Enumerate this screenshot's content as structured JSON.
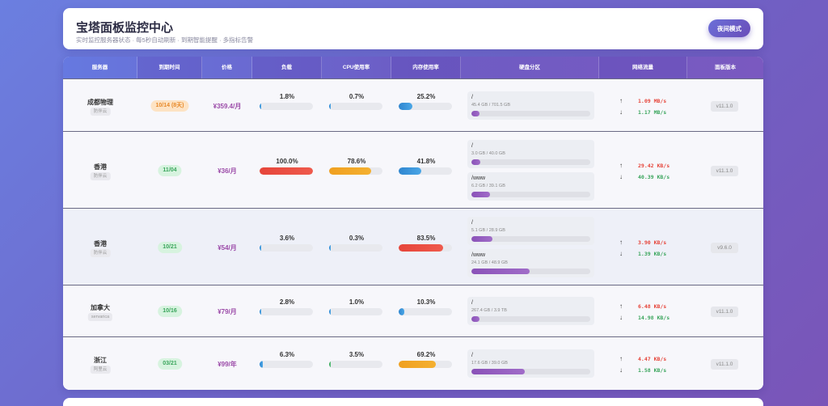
{
  "header": {
    "title": "宝塔面板监控中心",
    "subtitle": "实时监控服务器状态 · 每5秒自动刷新 · 到期智能提醒 · 多指标告警",
    "night_mode_label": "夜间模式"
  },
  "columns": [
    "服务器",
    "到期时间",
    "价格",
    "负载",
    "CPU使用率",
    "内存使用率",
    "硬盘分区",
    "网络流量",
    "面板版本"
  ],
  "net_arrows": {
    "up": "↑",
    "down": "↓"
  },
  "servers": [
    {
      "name": "成都物理",
      "provider": "防伴云",
      "expiry": "10/14 (8天)",
      "expiry_status": "warn",
      "price": "¥359.4/月",
      "load": "1.8%",
      "load_pct": 1.8,
      "cpu": "0.7%",
      "cpu_pct": 0.7,
      "mem": "25.2%",
      "mem_pct": 25.2,
      "disks": [
        {
          "mount": "/",
          "size": "45.4 GB / 701.5 GB",
          "pct": 6.5
        }
      ],
      "net_up": "1.09 MB/s",
      "net_down": "1.17 MB/s",
      "version": "v11.1.0"
    },
    {
      "name": "香港",
      "provider": "防伴云",
      "expiry": "11/04",
      "expiry_status": "ok",
      "price": "¥36/月",
      "load": "100.0%",
      "load_pct": 100,
      "cpu": "78.6%",
      "cpu_pct": 78.6,
      "mem": "41.8%",
      "mem_pct": 41.8,
      "disks": [
        {
          "mount": "/",
          "size": "3.0 GB / 40.0 GB",
          "pct": 7.5
        },
        {
          "mount": "/www",
          "size": "6.2 GB / 39.1 GB",
          "pct": 15.9
        }
      ],
      "net_up": "29.42 KB/s",
      "net_down": "40.39 KB/s",
      "version": "v11.1.0"
    },
    {
      "name": "香港",
      "provider": "防伴云",
      "expiry": "10/21",
      "expiry_status": "ok",
      "price": "¥54/月",
      "load": "3.6%",
      "load_pct": 3.6,
      "cpu": "0.3%",
      "cpu_pct": 0.3,
      "mem": "83.5%",
      "mem_pct": 83.5,
      "disks": [
        {
          "mount": "/",
          "size": "5.1 GB / 28.9 GB",
          "pct": 17.6
        },
        {
          "mount": "/www",
          "size": "24.1 GB / 48.9 GB",
          "pct": 49.3
        }
      ],
      "net_up": "3.90 KB/s",
      "net_down": "1.39 KB/s",
      "version": "v9.6.0"
    },
    {
      "name": "加拿大",
      "provider": "servarica",
      "expiry": "10/16",
      "expiry_status": "ok",
      "price": "¥79/月",
      "load": "2.8%",
      "load_pct": 2.8,
      "cpu": "1.0%",
      "cpu_pct": 1.0,
      "mem": "10.3%",
      "mem_pct": 10.3,
      "disks": [
        {
          "mount": "/",
          "size": "267.4 GB / 3.9 TB",
          "pct": 6.7
        }
      ],
      "net_up": "6.48 KB/s",
      "net_down": "14.98 KB/s",
      "version": "v11.1.0"
    },
    {
      "name": "浙江",
      "provider": "阿里云",
      "expiry": "03/21",
      "expiry_status": "ok",
      "price": "¥99/年",
      "load": "6.3%",
      "load_pct": 6.3,
      "cpu": "3.5%",
      "cpu_pct": 3.5,
      "mem": "69.2%",
      "mem_pct": 69.2,
      "disks": [
        {
          "mount": "/",
          "size": "17.6 GB / 39.0 GB",
          "pct": 45.1
        }
      ],
      "net_up": "4.47 KB/s",
      "net_down": "1.58 KB/s",
      "version": "v11.1.0"
    }
  ]
}
